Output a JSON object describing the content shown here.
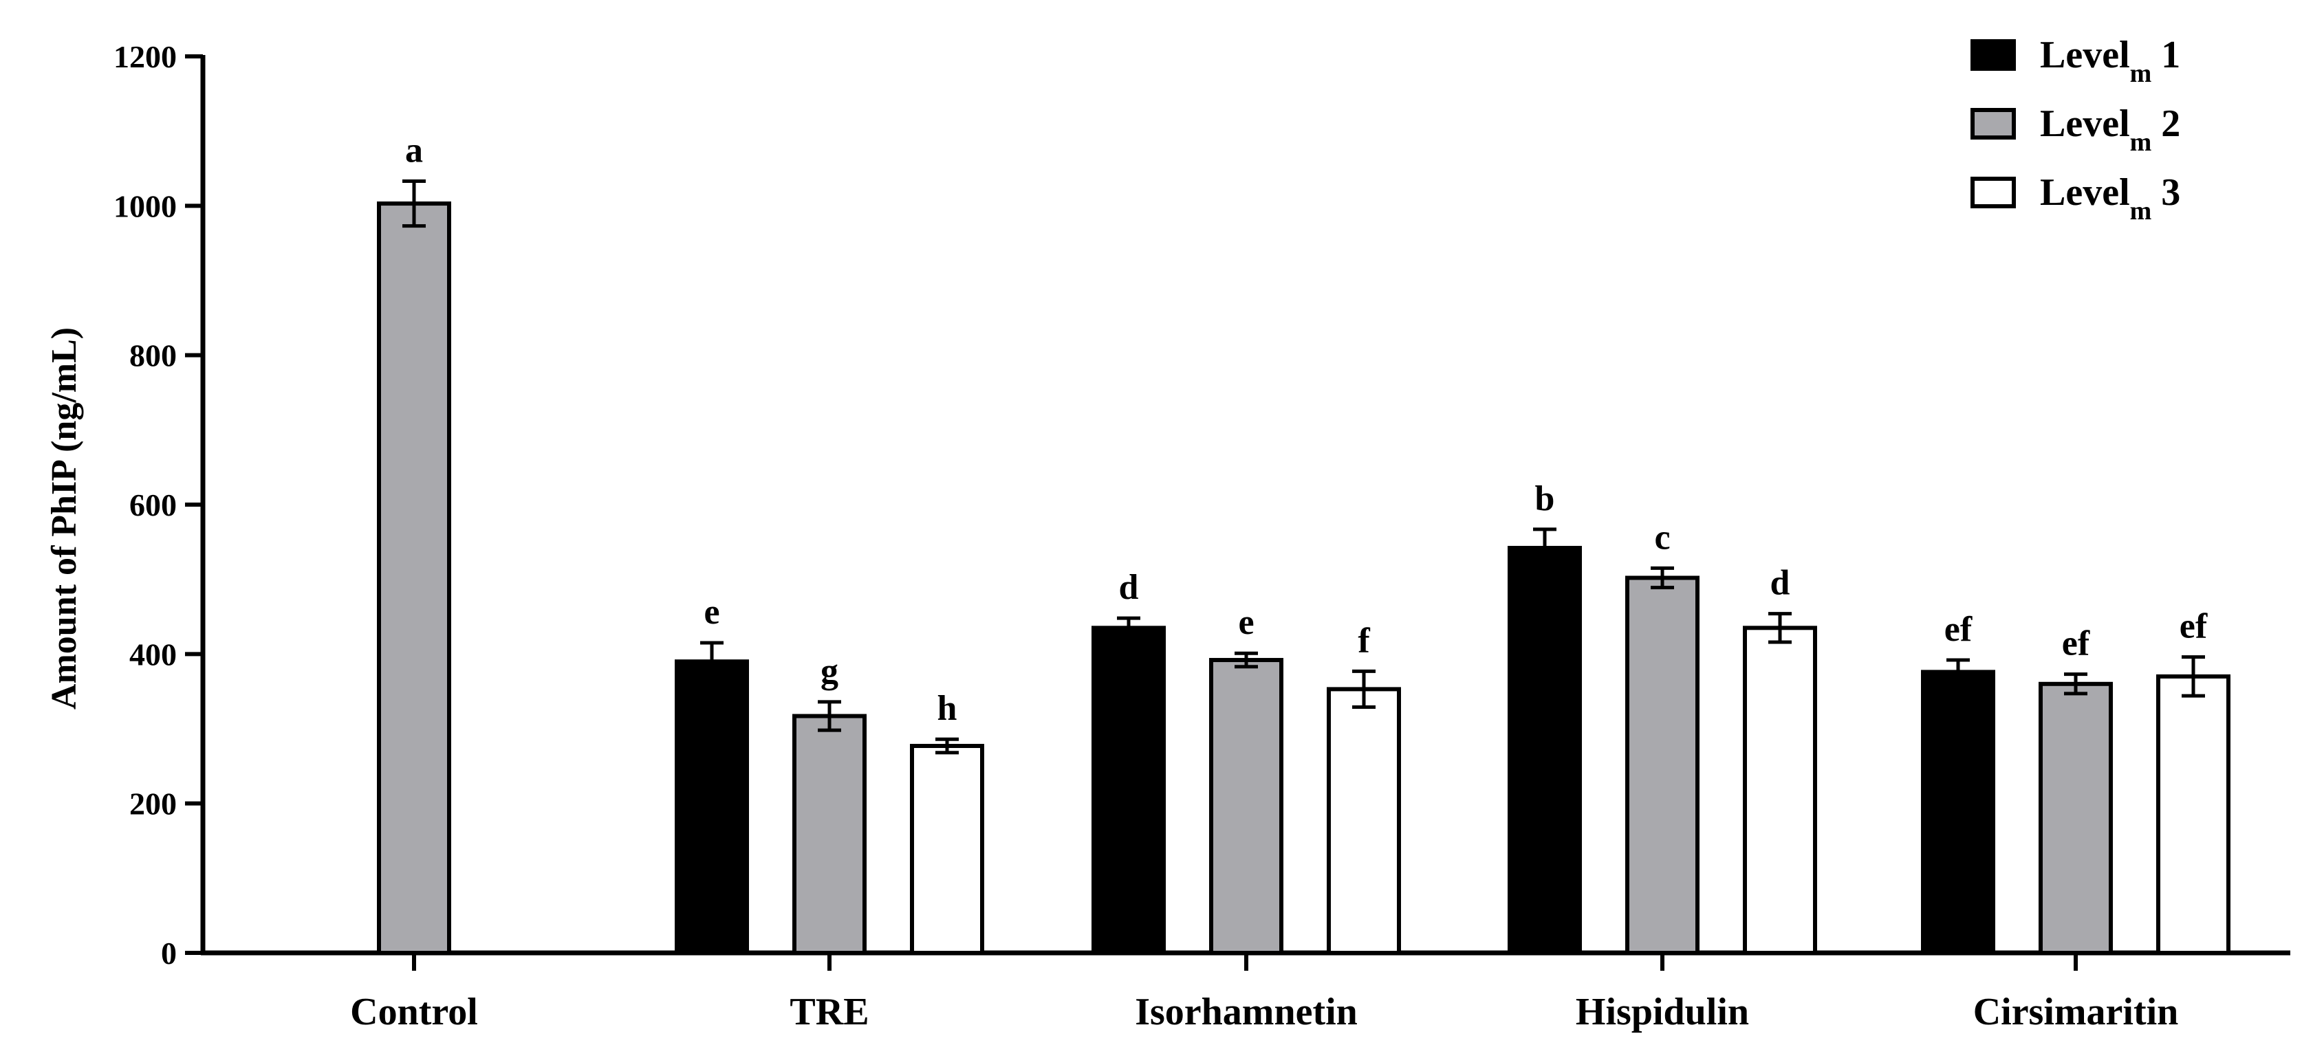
{
  "chart_data": {
    "type": "bar",
    "title": "",
    "xlabel": "",
    "ylabel": "Amount of PhIP (ng/mL)",
    "ylim": [
      0,
      1200
    ],
    "yticks": [
      0,
      200,
      400,
      600,
      800,
      1000,
      1200
    ],
    "grid": false,
    "legend_position": "top-right",
    "categories": [
      "Control",
      "TRE",
      "Isorhamnetin",
      "Hispidulin",
      "Cirsimaritin"
    ],
    "series": [
      {
        "name": "Level",
        "subscript": "m",
        "suffix": "1",
        "color": "#000000",
        "values": [
          null,
          390,
          435,
          542,
          376
        ],
        "errors": [
          null,
          25,
          13,
          25,
          16
        ],
        "labels": [
          null,
          "e",
          "d",
          "b",
          "ef"
        ]
      },
      {
        "name": "Level",
        "subscript": "m",
        "suffix": "2",
        "color": "#a9a9ad",
        "values": [
          1003,
          317,
          392,
          502,
          360
        ],
        "errors": [
          30,
          19,
          9,
          13,
          13
        ],
        "labels": [
          "a",
          "g",
          "e",
          "c",
          "ef"
        ]
      },
      {
        "name": "Level",
        "subscript": "m",
        "suffix": "3",
        "color": "#ffffff",
        "values": [
          null,
          277,
          353,
          435,
          370
        ],
        "errors": [
          null,
          9,
          24,
          19,
          26
        ],
        "labels": [
          null,
          "h",
          "f",
          "d",
          "ef"
        ]
      }
    ]
  }
}
